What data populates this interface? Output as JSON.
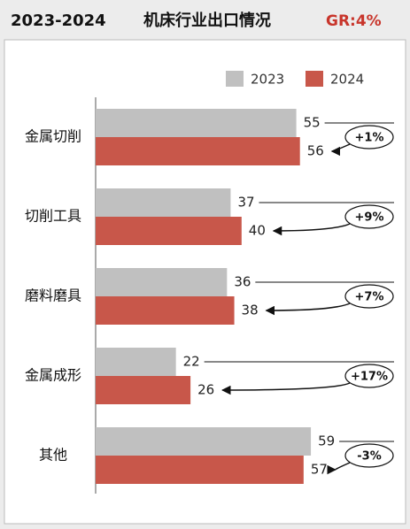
{
  "chart_data": {
    "type": "hbar",
    "title": "2023-2024",
    "subtitle": "机床行业出口情况",
    "growth": "GR:4%",
    "categories": [
      "金属切削",
      "切削工具",
      "磨料磨具",
      "金属成形",
      "其他"
    ],
    "series": [
      {
        "name": "2023",
        "color": "#c0c0c0",
        "values": [
          55,
          37,
          36,
          22,
          59
        ]
      },
      {
        "name": "2024",
        "color": "#c8574a",
        "values": [
          56,
          40,
          38,
          26,
          57
        ]
      }
    ],
    "annotations": [
      "+1%",
      "+9%",
      "+7%",
      "+17%",
      "-3%"
    ]
  }
}
